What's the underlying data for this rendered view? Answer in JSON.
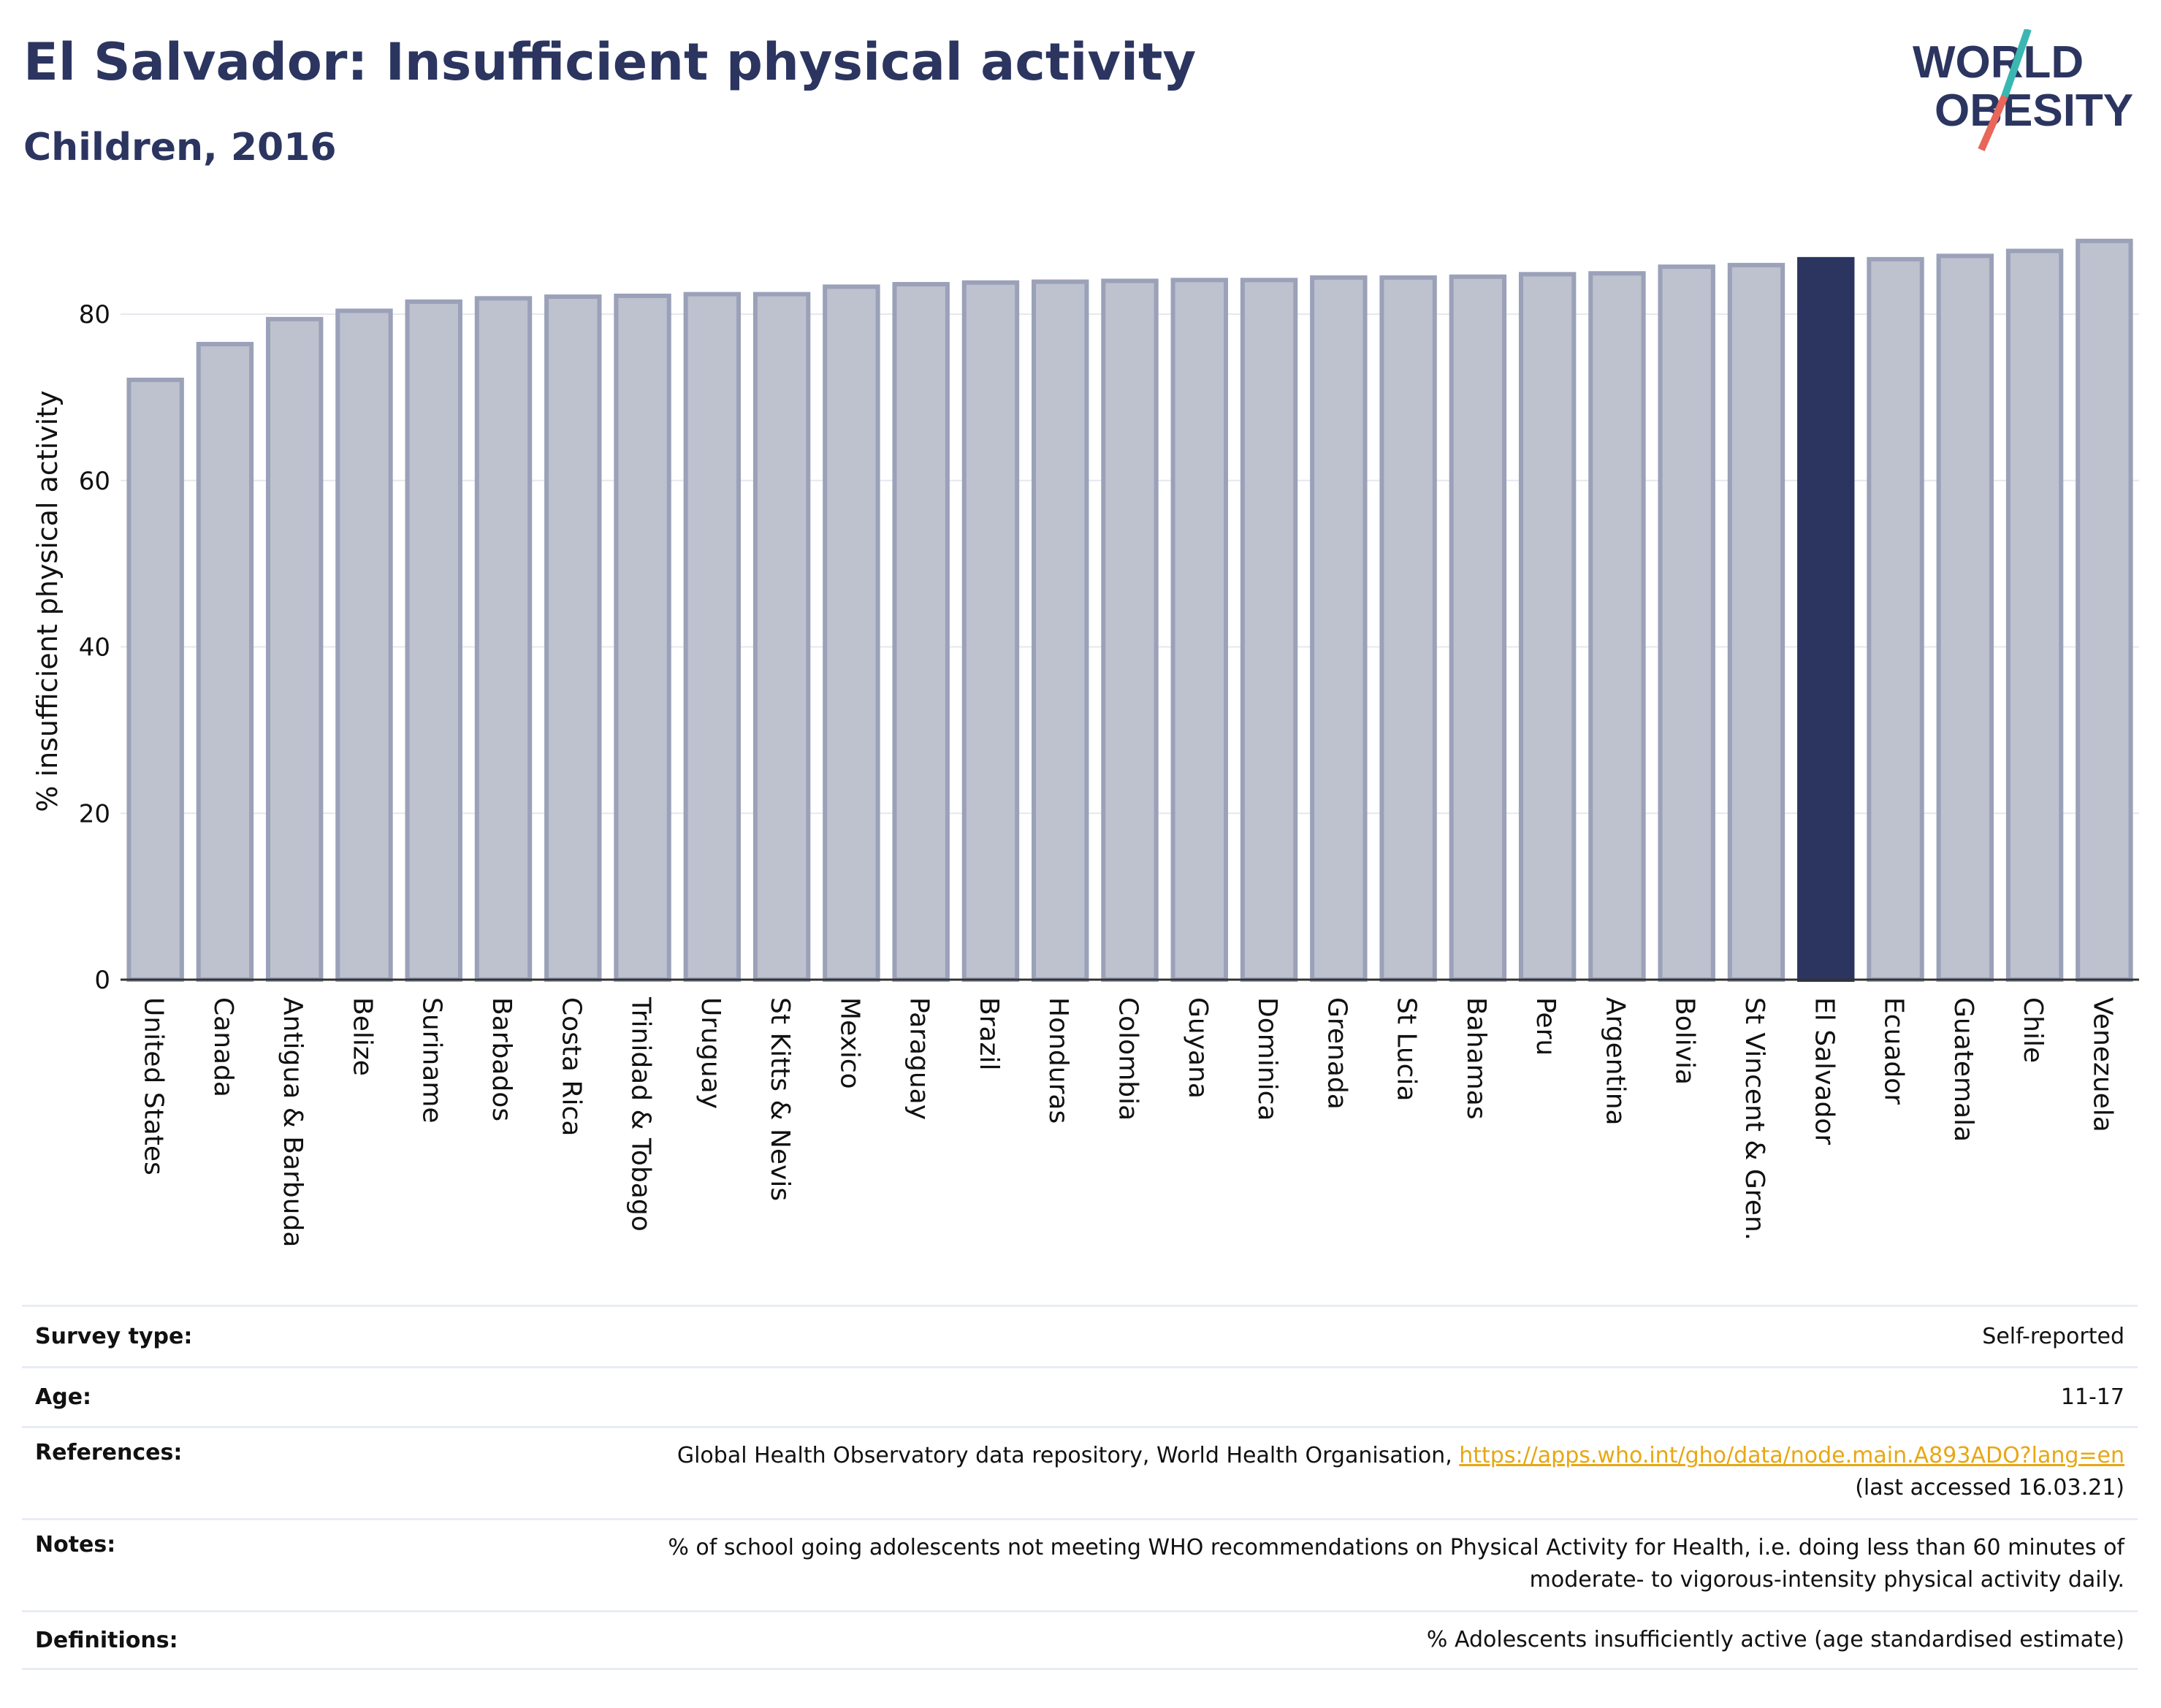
{
  "header": {
    "title": "El Salvador: Insufficient physical activity",
    "subtitle": "Children, 2016"
  },
  "logo": {
    "line1": "WORLD",
    "line2": "OBESITY",
    "colors": {
      "text": "#2b3560",
      "slash_teal": "#3bb7b2",
      "slash_coral": "#e8665a"
    }
  },
  "chart_data": {
    "type": "bar",
    "ylabel": "% insufficient physical activity",
    "xlabel": "",
    "ylim": [
      0,
      90
    ],
    "yticks": [
      0,
      20,
      40,
      60,
      80
    ],
    "grid": true,
    "highlight": "El Salvador",
    "colors": {
      "bar": "#bec1ce",
      "bar_border": "#9aa1b8",
      "highlight": "#2b3560",
      "grid": "#e6e8ef"
    },
    "categories": [
      "United States",
      "Canada",
      "Antigua & Barbuda",
      "Belize",
      "Suriname",
      "Barbados",
      "Costa Rica",
      "Trinidad & Tobago",
      "Uruguay",
      "St Kitts & Nevis",
      "Mexico",
      "Paraguay",
      "Brazil",
      "Honduras",
      "Colombia",
      "Guyana",
      "Dominica",
      "Grenada",
      "St Lucia",
      "Bahamas",
      "Peru",
      "Argentina",
      "Bolivia",
      "St Vincent & Gren.",
      "El Salvador",
      "Ecuador",
      "Guatemala",
      "Chile",
      "Venezuela"
    ],
    "values": [
      72.1,
      76.4,
      79.4,
      80.4,
      81.5,
      81.9,
      82.1,
      82.2,
      82.4,
      82.4,
      83.3,
      83.6,
      83.8,
      83.9,
      84.0,
      84.1,
      84.1,
      84.4,
      84.4,
      84.5,
      84.8,
      84.9,
      85.7,
      85.9,
      86.6,
      86.6,
      87.0,
      87.6,
      88.8
    ]
  },
  "info": {
    "survey_type": {
      "label": "Survey type:",
      "value": "Self-reported"
    },
    "age": {
      "label": "Age:",
      "value": "11-17"
    },
    "references": {
      "label": "References:",
      "text": "Global Health Observatory data repository, World Health Organisation, ",
      "link": "https://apps.who.int/gho/data/node.main.A893ADO?lang=en",
      "accessed": "(last accessed 16.03.21)"
    },
    "notes": {
      "label": "Notes:",
      "line1": "% of school going adolescents not meeting WHO recommendations on Physical Activity for Health, i.e. doing less than 60 minutes of",
      "line2": "moderate- to vigorous-intensity physical activity daily."
    },
    "definitions": {
      "label": "Definitions:",
      "value": "% Adolescents insufficiently active (age standardised estimate)"
    }
  }
}
